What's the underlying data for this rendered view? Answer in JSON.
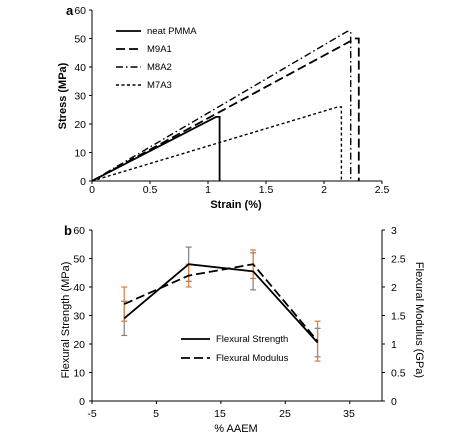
{
  "panels": [
    {
      "letter": "a",
      "chart_data": {
        "type": "line",
        "title": "",
        "xlabel": "Strain (%)",
        "ylabel": "Stress (MPa)",
        "xlim": [
          0,
          2.5
        ],
        "ylim": [
          0,
          60
        ],
        "xticks": [
          "0",
          "0.5",
          "1",
          "1.5",
          "2",
          "2.5"
        ],
        "yticks": [
          "0",
          "10",
          "20",
          "30",
          "40",
          "50",
          "60"
        ],
        "grid": false,
        "legend_position": "top-left",
        "series": [
          {
            "name": "neat PMMA",
            "style": "solid",
            "x": [
              0,
              1.07,
              1.1,
              1.1
            ],
            "y": [
              0,
              22.5,
              22.5,
              0
            ]
          },
          {
            "name": "M9A1",
            "style": "long-dash",
            "x": [
              0,
              2.27,
              2.3,
              2.3
            ],
            "y": [
              0,
              50,
              50,
              0
            ]
          },
          {
            "name": "M8A2",
            "style": "dash-dot",
            "x": [
              0,
              2.2,
              2.23,
              2.23
            ],
            "y": [
              0,
              52.5,
              52.5,
              0
            ]
          },
          {
            "name": "M7A3",
            "style": "short-dash",
            "x": [
              0,
              2.12,
              2.15,
              2.15
            ],
            "y": [
              0,
              26,
              26,
              0
            ]
          }
        ]
      }
    },
    {
      "letter": "b",
      "chart_data": {
        "type": "line",
        "title": "",
        "xlabel": "% AAEM",
        "ylabel": "Flexural Strength (MPa)",
        "y2label": "Flexural Modulus (GPa)",
        "xlim": [
          -5,
          40
        ],
        "ylim": [
          0,
          60
        ],
        "y2lim": [
          0,
          3
        ],
        "xticks": [
          "-5",
          "5",
          "15",
          "25",
          "35"
        ],
        "yticks": [
          "0",
          "10",
          "20",
          "30",
          "40",
          "50",
          "60"
        ],
        "y2ticks": [
          "0",
          "0.5",
          "1",
          "1.5",
          "2",
          "2.5",
          "3"
        ],
        "grid": false,
        "legend_position": "bottom-center",
        "series": [
          {
            "name": "Flexural Strength",
            "style": "solid",
            "axis": "left",
            "x": [
              0,
              10,
              20,
              30
            ],
            "y": [
              29,
              48,
              45.5,
              20.5
            ],
            "error": [
              6,
              6,
              6.5,
              5
            ]
          },
          {
            "name": "Flexural Modulus",
            "style": "long-dash",
            "axis": "right",
            "x": [
              0,
              10,
              20,
              30
            ],
            "y": [
              1.7,
              2.2,
              2.4,
              1.05
            ],
            "error": [
              0.3,
              0.2,
              0.25,
              0.35
            ]
          }
        ],
        "error_bar_colors": [
          "#7f7f7f",
          "#e07b39"
        ]
      }
    }
  ]
}
